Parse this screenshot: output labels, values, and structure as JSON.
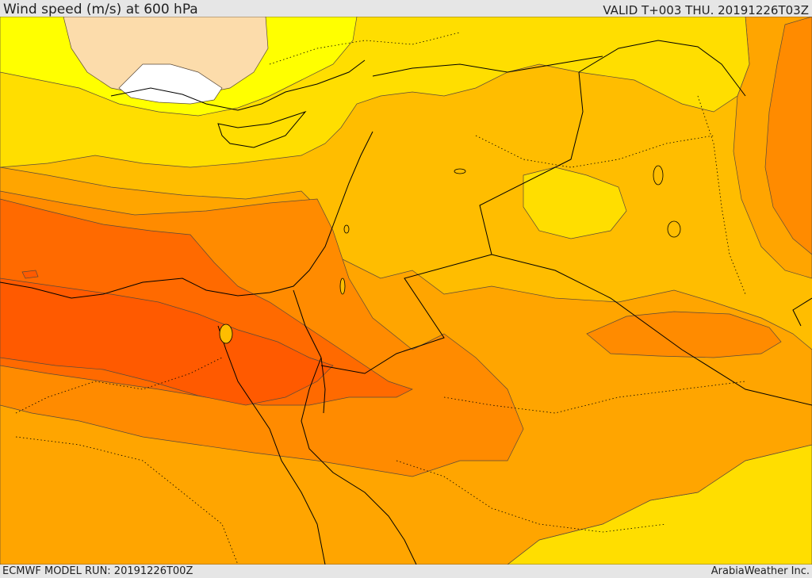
{
  "header": {
    "title": "Wind speed (m/s) at 600 hPa",
    "valid": "VALID T+003 THU. 20191226T03Z"
  },
  "footer": {
    "model_run": "ECMWF MODEL RUN: 20191226T00Z",
    "credit": "ArabiaWeather Inc."
  },
  "palette": {
    "band_lightest": "#fcdcab",
    "band_bright_yellow": "#ffff00",
    "band_yellow": "#ffde00",
    "band_amber": "#ffbd00",
    "band_orange_light": "#ffa500",
    "band_orange": "#ff8b00",
    "band_orange_dark": "#ff6a00",
    "band_red_orange": "#ff5a00",
    "calm_white": "#ffffff",
    "coastline": "#000000",
    "contour": "#5a4a3a"
  }
}
